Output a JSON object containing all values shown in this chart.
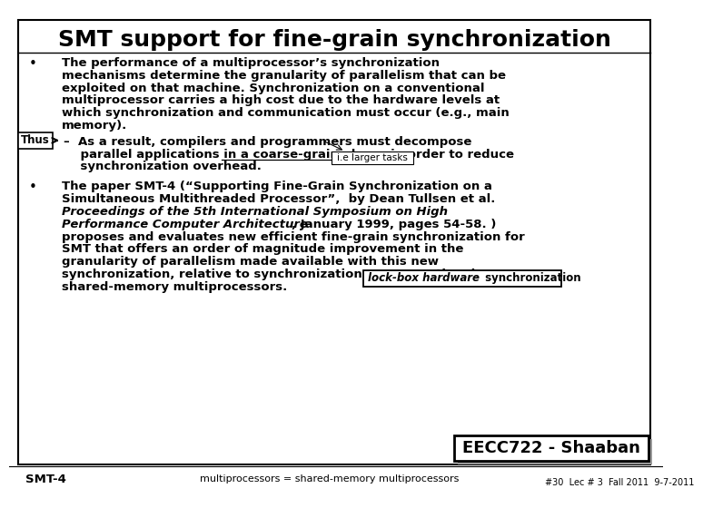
{
  "title": "SMT support for fine-grain synchronization",
  "bg_color": "#ffffff",
  "border_color": "#000000",
  "title_fontsize": 18,
  "body_fontsize": 9.5,
  "thus_label": "Thus",
  "callout_text": "i.e larger tasks",
  "lockbox_italic": "lock-box hardware",
  "lockbox_normal": " synchronization",
  "eecc_text": "EECC722 - Shaaban",
  "footer_left": "SMT-4",
  "footer_center": "multiprocessors = shared-memory multiprocessors",
  "footer_right": "#30  Lec # 3  Fall 2011  9-7-2011"
}
